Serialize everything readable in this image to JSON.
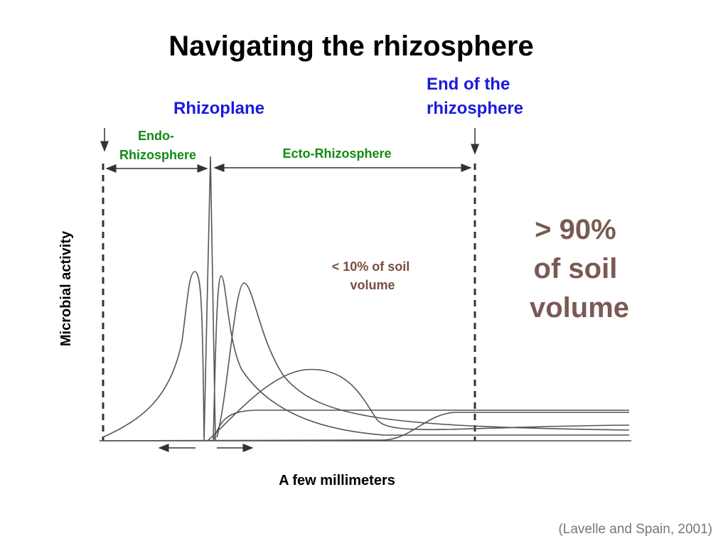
{
  "header": {
    "title": "Navigating the rhizosphere"
  },
  "labels": {
    "rhizoplane": "Rhizoplane",
    "end_of_rhizosphere": [
      "End of the",
      "rhizosphere"
    ],
    "endo": [
      "Endo-",
      "Rhizosphere"
    ],
    "ecto": "Ecto-Rhizosphere",
    "small_share": [
      "< 10% of soil",
      "volume"
    ],
    "large_share": [
      "> 90%",
      "of soil",
      "volume"
    ],
    "y_axis": "Microbial activity",
    "x_axis": "A few millimeters"
  },
  "citation": "(Lavelle and Spain, 2001)"
}
